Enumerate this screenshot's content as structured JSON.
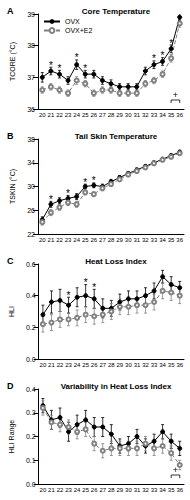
{
  "chart_data": [
    {
      "type": "line",
      "panel_label": "A",
      "title": "Core Temperature",
      "y_label": "TCORE (°C)",
      "x": [
        20,
        21,
        22,
        23,
        24,
        25,
        26,
        27,
        28,
        29,
        30,
        31,
        32,
        33,
        34,
        35,
        36
      ],
      "series": [
        {
          "name": "OVX",
          "color": "#000000",
          "marker": "circle",
          "line_style": "solid",
          "values": [
            37.0,
            37.2,
            37.1,
            36.9,
            37.4,
            37.1,
            37.1,
            36.9,
            36.8,
            36.7,
            36.7,
            36.7,
            37.2,
            37.4,
            37.5,
            37.9,
            38.9
          ],
          "errors": [
            0.15,
            0.12,
            0.12,
            0.12,
            0.15,
            0.12,
            0.12,
            0.12,
            0.12,
            0.1,
            0.1,
            0.1,
            0.12,
            0.12,
            0.12,
            0.12,
            0.12
          ]
        },
        {
          "name": "OVX+E2",
          "color": "#808080",
          "marker": "open circle",
          "line_style": "dashed",
          "values": [
            36.6,
            36.7,
            36.6,
            36.5,
            36.9,
            36.8,
            36.5,
            36.6,
            36.6,
            36.5,
            36.5,
            36.5,
            36.8,
            36.9,
            37.1,
            37.6,
            38.7
          ],
          "errors": [
            0.1,
            0.1,
            0.1,
            0.1,
            0.12,
            0.1,
            0.1,
            0.1,
            0.1,
            0.1,
            0.1,
            0.1,
            0.1,
            0.1,
            0.1,
            0.12,
            0.12
          ]
        }
      ],
      "ylim": [
        36,
        39
      ],
      "yticks": [
        36,
        37,
        38,
        39
      ],
      "grid": false,
      "legend": "upper left",
      "annotations": [
        {
          "x": 21,
          "text": "*"
        },
        {
          "x": 22,
          "text": "*"
        },
        {
          "x": 24,
          "text": "*"
        },
        {
          "x": 25,
          "text": "*"
        },
        {
          "x": 33,
          "text": "*"
        },
        {
          "x": 34,
          "text": "*"
        },
        {
          "x": 35,
          "text": "*"
        },
        {
          "x_range": [
            35,
            36
          ],
          "text": "+"
        }
      ]
    },
    {
      "type": "line",
      "panel_label": "B",
      "title": "Tail Skin Temperature",
      "y_label": "TSKIN (°C)",
      "x": [
        20,
        21,
        22,
        23,
        24,
        25,
        26,
        27,
        28,
        29,
        30,
        31,
        32,
        33,
        34,
        35,
        36
      ],
      "series": [
        {
          "name": "OVX",
          "color": "#000000",
          "marker": "circle",
          "line_style": "solid",
          "values": [
            24.4,
            27.0,
            27.6,
            28.0,
            28.3,
            30.0,
            30.2,
            30.0,
            30.8,
            31.5,
            32.2,
            32.8,
            33.4,
            34.0,
            34.6,
            35.2,
            35.8
          ],
          "errors": [
            0.5,
            0.5,
            0.5,
            0.5,
            0.5,
            0.4,
            0.4,
            0.4,
            0.4,
            0.3,
            0.3,
            0.3,
            0.3,
            0.3,
            0.3,
            0.3,
            0.3
          ]
        },
        {
          "name": "OVX+E2",
          "color": "#808080",
          "marker": "open circle",
          "line_style": "dashed",
          "values": [
            24.0,
            25.6,
            26.5,
            27.3,
            27.0,
            29.0,
            28.7,
            29.7,
            30.4,
            31.2,
            32.0,
            32.6,
            33.2,
            33.9,
            34.5,
            35.0,
            35.6
          ],
          "errors": [
            0.5,
            0.5,
            0.5,
            0.5,
            0.5,
            0.4,
            0.4,
            0.4,
            0.4,
            0.3,
            0.3,
            0.3,
            0.3,
            0.3,
            0.3,
            0.3,
            0.3
          ]
        }
      ],
      "ylim": [
        22,
        38
      ],
      "yticks": [
        22,
        26,
        30,
        34,
        38
      ],
      "grid": false,
      "annotations": [
        {
          "x": 21,
          "text": "*"
        },
        {
          "x": 23,
          "text": "*"
        },
        {
          "x": 25,
          "text": "*"
        },
        {
          "x": 26,
          "text": "*"
        }
      ]
    },
    {
      "type": "line",
      "panel_label": "C",
      "title": "Heat Loss Index",
      "y_label": "HLI",
      "x": [
        20,
        21,
        22,
        23,
        24,
        25,
        26,
        27,
        28,
        29,
        30,
        31,
        32,
        33,
        34,
        35,
        36
      ],
      "series": [
        {
          "name": "OVX",
          "color": "#000000",
          "marker": "circle",
          "line_style": "solid",
          "values": [
            0.28,
            0.36,
            0.37,
            0.34,
            0.39,
            0.4,
            0.38,
            0.32,
            0.32,
            0.36,
            0.38,
            0.38,
            0.4,
            0.43,
            0.52,
            0.47,
            0.45
          ],
          "errors": [
            0.06,
            0.07,
            0.07,
            0.05,
            0.06,
            0.07,
            0.06,
            0.06,
            0.05,
            0.05,
            0.05,
            0.05,
            0.05,
            0.05,
            0.04,
            0.05,
            0.04
          ]
        },
        {
          "name": "OVX+E2",
          "color": "#808080",
          "marker": "open circle",
          "line_style": "dashed",
          "values": [
            0.22,
            0.23,
            0.25,
            0.25,
            0.26,
            0.28,
            0.27,
            0.28,
            0.3,
            0.33,
            0.33,
            0.34,
            0.34,
            0.36,
            0.43,
            0.42,
            0.4
          ],
          "errors": [
            0.05,
            0.05,
            0.05,
            0.04,
            0.05,
            0.05,
            0.05,
            0.05,
            0.05,
            0.05,
            0.05,
            0.05,
            0.05,
            0.05,
            0.05,
            0.05,
            0.05
          ]
        }
      ],
      "ylim": [
        0,
        0.6
      ],
      "yticks": [
        {
          "value": 0,
          "label": "0.0"
        },
        0.2,
        0.4,
        0.6
      ],
      "grid": false,
      "annotations": [
        {
          "x": 23,
          "text": "*"
        },
        {
          "x": 25,
          "text": "*"
        },
        {
          "x": 26,
          "text": "*"
        }
      ]
    },
    {
      "type": "line",
      "panel_label": "D",
      "title": "Variability in Heat Loss Index",
      "y_label": "HLI Range",
      "x": [
        20,
        21,
        22,
        23,
        24,
        25,
        26,
        27,
        28,
        29,
        30,
        31,
        32,
        33,
        34,
        35,
        36
      ],
      "series": [
        {
          "name": "OVX",
          "color": "#000000",
          "marker": "circle",
          "line_style": "solid",
          "values": [
            0.33,
            0.27,
            0.28,
            0.22,
            0.25,
            0.27,
            0.24,
            0.24,
            0.21,
            0.16,
            0.17,
            0.2,
            0.16,
            0.18,
            0.22,
            0.18,
            0.15
          ],
          "errors": [
            0.03,
            0.04,
            0.04,
            0.04,
            0.04,
            0.04,
            0.04,
            0.04,
            0.04,
            0.03,
            0.03,
            0.03,
            0.03,
            0.03,
            0.03,
            0.03,
            0.03
          ]
        },
        {
          "name": "OVX+E2",
          "color": "#808080",
          "marker": "open circle",
          "line_style": "dashed",
          "values": [
            0.32,
            0.26,
            0.25,
            0.24,
            0.22,
            0.23,
            0.17,
            0.14,
            0.15,
            0.15,
            0.15,
            0.15,
            0.17,
            0.15,
            0.16,
            0.13,
            0.08
          ],
          "errors": [
            0.03,
            0.03,
            0.03,
            0.03,
            0.03,
            0.03,
            0.03,
            0.03,
            0.03,
            0.03,
            0.03,
            0.03,
            0.03,
            0.03,
            0.03,
            0.03,
            0.02
          ]
        }
      ],
      "ylim": [
        0,
        0.4
      ],
      "yticks": [
        {
          "value": 0,
          "label": "0.0"
        },
        0.1,
        0.2,
        0.3,
        0.4
      ],
      "grid": false,
      "annotations": [
        {
          "x_range": [
            35,
            36
          ],
          "text": "+"
        }
      ]
    }
  ]
}
